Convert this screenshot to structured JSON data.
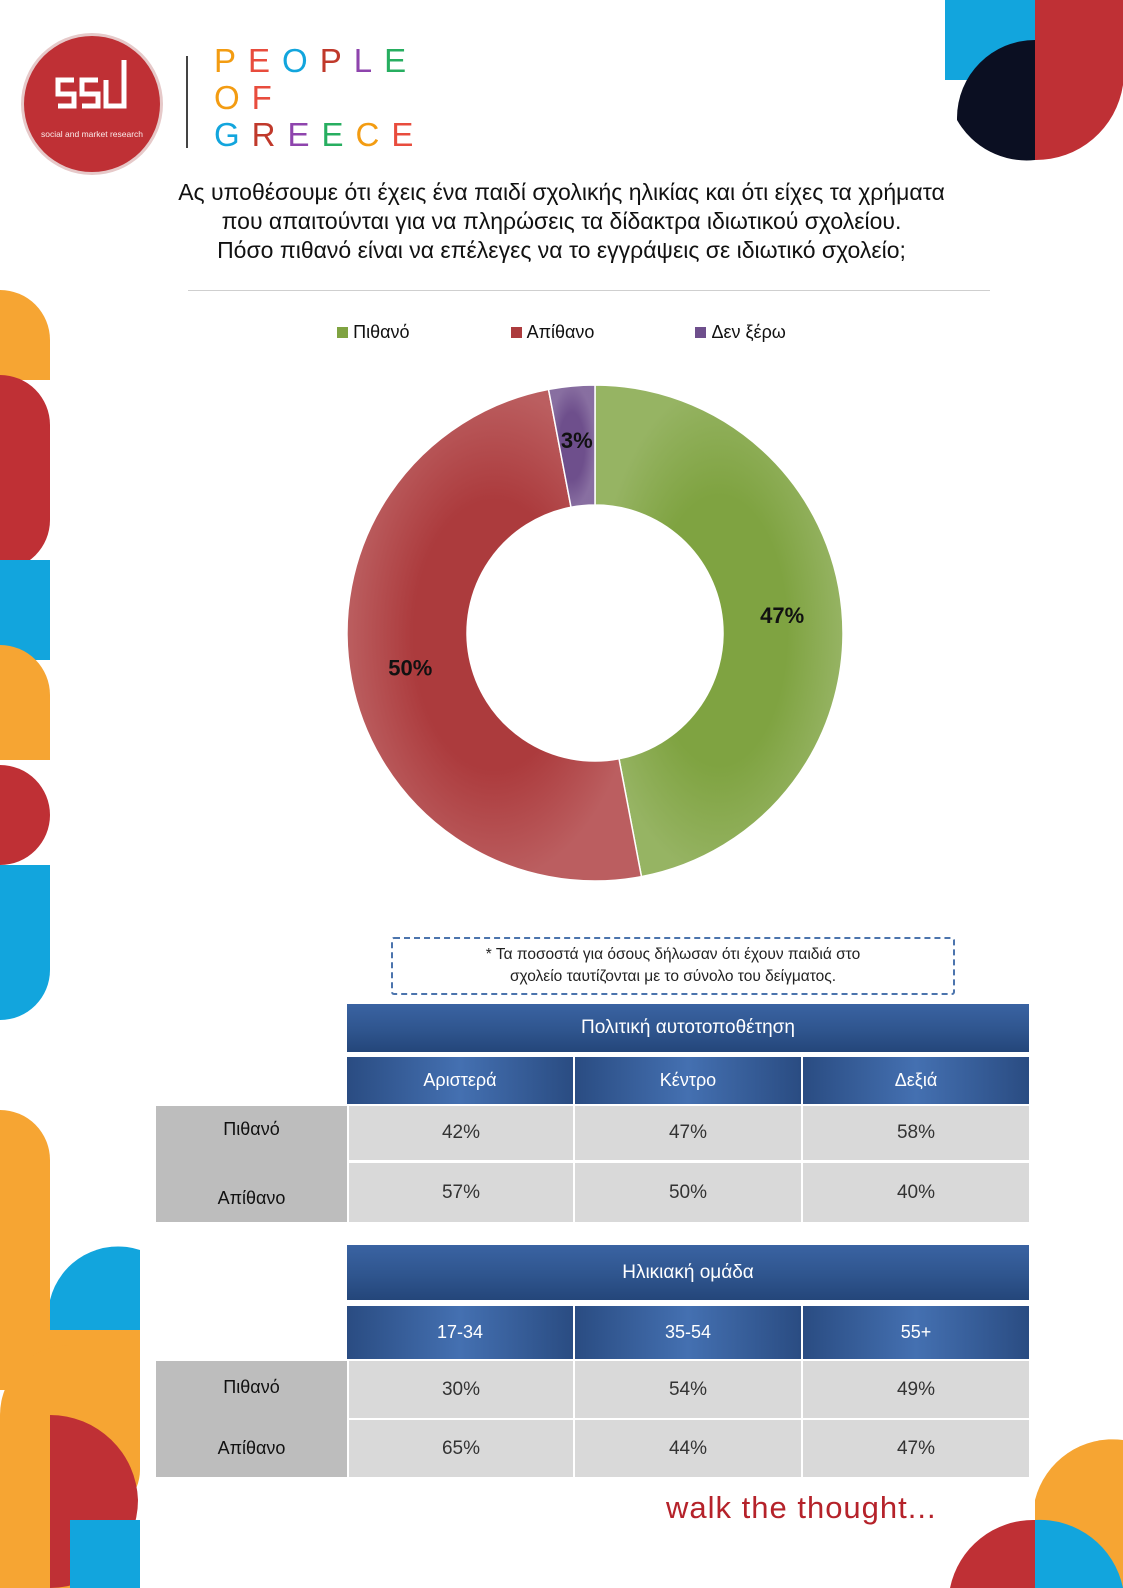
{
  "brand": {
    "logo_tagline": "social and market research",
    "people_of_greece": [
      "PEOPLE",
      "OF",
      "GREECE"
    ],
    "slogan": "walk the thought..."
  },
  "title_lines": [
    "Ας υποθέσουμε ότι έχεις ένα παιδί σχολικής ηλικίας και ότι είχες τα χρήματα",
    "που απαιτούνται για να πληρώσεις τα δίδακτρα ιδιωτικού σχολείου.",
    "Πόσο πιθανό είναι να επέλεγες να το εγγράψεις σε ιδιωτικό σχολείο;"
  ],
  "chart_data": {
    "type": "pie",
    "donut": true,
    "title": "",
    "legend_position": "top",
    "slices": [
      {
        "name": "Πιθανό",
        "value": 47,
        "label": "47%",
        "color": "#7fa341"
      },
      {
        "name": "Απίθανο",
        "value": 50,
        "label": "50%",
        "color": "#ac3b3d"
      },
      {
        "name": "Δεν ξέρω",
        "value": 3,
        "label": "3%",
        "color": "#6e4f8c"
      }
    ]
  },
  "note": {
    "line1": "* Τα ποσοστά για όσους δήλωσαν ότι έχουν παιδιά στο",
    "line2": "σχολείο ταυτίζονται με το σύνολο του δείγματος."
  },
  "tables": [
    {
      "header": "Πολιτική αυτοτοποθέτηση",
      "columns": [
        "Αριστερά",
        "Κέντρο",
        "Δεξιά"
      ],
      "rows": [
        {
          "label": "Πιθανό",
          "values": [
            "42%",
            "47%",
            "58%"
          ]
        },
        {
          "label": "Απίθανο",
          "values": [
            "57%",
            "50%",
            "40%"
          ]
        }
      ]
    },
    {
      "header": "Ηλικιακή ομάδα",
      "columns": [
        "17-34",
        "35-54",
        "55+"
      ],
      "rows": [
        {
          "label": "Πιθανό",
          "values": [
            "30%",
            "54%",
            "49%"
          ]
        },
        {
          "label": "Απίθανο",
          "values": [
            "65%",
            "44%",
            "47%"
          ]
        }
      ]
    }
  ],
  "colors": {
    "red": "#bf3035",
    "blue": "#12a5dd",
    "orange": "#f6a533",
    "navy": "#0b0f22",
    "table_header": "#2f558e",
    "pog_letters": [
      "#f39c12",
      "#e84c3d",
      "#12a5dd",
      "#c0392b",
      "#8e44ad",
      "#27ae60"
    ]
  }
}
